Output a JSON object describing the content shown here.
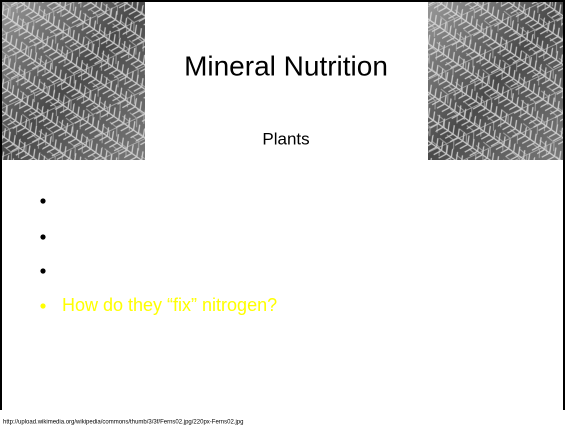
{
  "slide": {
    "title": "Mineral Nutrition",
    "subtitle": "Plants",
    "bullets": [
      "How do they “fix” nitrogen?"
    ],
    "image_credit": "http://upload.wikimedia.org/wikipedia/commons/thumb/3/3f/Ferns02.jpg/220px-Ferns02.jpg"
  }
}
